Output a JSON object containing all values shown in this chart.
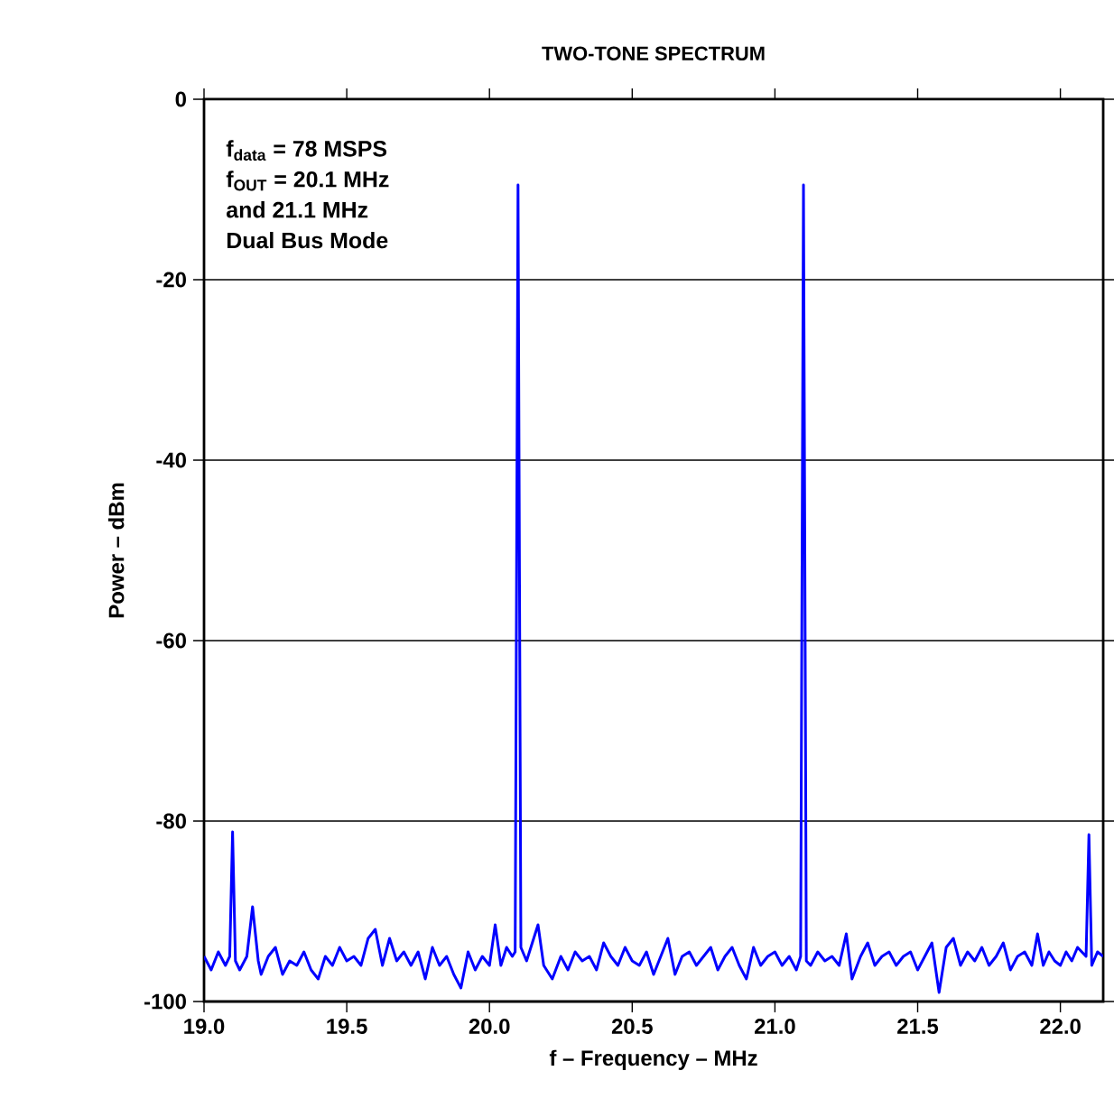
{
  "chart_data": {
    "type": "line",
    "title": "TWO-TONE SPECTRUM",
    "xlabel": "f – Frequency – MHz",
    "ylabel": "Power – dBm",
    "annotations": [
      "f$_{data}$ = 78 MSPS",
      "f$_{OUT}$ = 20.1 MHz",
      "and 21.1 MHz",
      "Dual Bus Mode"
    ],
    "xlim": [
      19.0,
      22.15
    ],
    "ylim": [
      -100,
      0
    ],
    "xticks": [
      {
        "value": 19,
        "label": "19.0"
      },
      19.5,
      {
        "value": 20,
        "label": "20.0"
      },
      20.5,
      {
        "value": 21,
        "label": "21.0"
      },
      21.5,
      {
        "value": 22,
        "label": "22.0"
      }
    ],
    "yticks": [
      -100,
      -80,
      -60,
      -40,
      -20,
      0
    ],
    "grid": "y",
    "marker": "none",
    "line_style": "solid",
    "series": [
      {
        "color": "#0000ff",
        "x": [
          19.0,
          19.025,
          19.05,
          19.075,
          19.09,
          19.1,
          19.11,
          19.125,
          19.15,
          19.17,
          19.19,
          19.2,
          19.225,
          19.25,
          19.275,
          19.3,
          19.325,
          19.35,
          19.375,
          19.4,
          19.425,
          19.45,
          19.475,
          19.5,
          19.525,
          19.55,
          19.575,
          19.6,
          19.625,
          19.65,
          19.675,
          19.7,
          19.725,
          19.75,
          19.775,
          19.8,
          19.825,
          19.85,
          19.875,
          19.9,
          19.925,
          19.95,
          19.975,
          20.0,
          20.02,
          20.04,
          20.06,
          20.08,
          20.09,
          20.1,
          20.11,
          20.13,
          20.15,
          20.17,
          20.19,
          20.22,
          20.25,
          20.275,
          20.3,
          20.325,
          20.35,
          20.375,
          20.4,
          20.425,
          20.45,
          20.475,
          20.5,
          20.525,
          20.55,
          20.575,
          20.6,
          20.625,
          20.65,
          20.675,
          20.7,
          20.725,
          20.75,
          20.775,
          20.8,
          20.825,
          20.85,
          20.875,
          20.9,
          20.925,
          20.95,
          20.975,
          21.0,
          21.025,
          21.05,
          21.075,
          21.09,
          21.1,
          21.11,
          21.125,
          21.15,
          21.175,
          21.2,
          21.225,
          21.25,
          21.27,
          21.3,
          21.325,
          21.35,
          21.375,
          21.4,
          21.425,
          21.45,
          21.475,
          21.5,
          21.525,
          21.55,
          21.575,
          21.6,
          21.625,
          21.65,
          21.675,
          21.7,
          21.725,
          21.75,
          21.775,
          21.8,
          21.825,
          21.85,
          21.875,
          21.9,
          21.92,
          21.94,
          21.96,
          21.98,
          22.0,
          22.02,
          22.04,
          22.06,
          22.09,
          22.1,
          22.11,
          22.13,
          22.15
        ],
        "values": [
          -95,
          -96.5,
          -94.5,
          -96,
          -95,
          -81.2,
          -95.5,
          -96.5,
          -95,
          -89.5,
          -95.5,
          -97,
          -95,
          -94,
          -97,
          -95.5,
          -96,
          -94.5,
          -96.5,
          -97.5,
          -95,
          -96,
          -94,
          -95.5,
          -95,
          -96,
          -93,
          -92,
          -96,
          -93,
          -95.5,
          -94.5,
          -96,
          -94.5,
          -97.5,
          -94,
          -96,
          -95,
          -97,
          -98.5,
          -94.5,
          -96.5,
          -95,
          -96,
          -91.5,
          -96,
          -94,
          -95,
          -94.5,
          -9.5,
          -94,
          -95.5,
          -93.5,
          -91.5,
          -96,
          -97.5,
          -95,
          -96.5,
          -94.5,
          -95.5,
          -95,
          -96.5,
          -93.5,
          -95,
          -96,
          -94,
          -95.5,
          -96,
          -94.5,
          -97,
          -95,
          -93,
          -97,
          -95,
          -94.5,
          -96,
          -95,
          -94,
          -96.5,
          -95,
          -94,
          -96,
          -97.5,
          -94,
          -96,
          -95,
          -94.5,
          -96,
          -95,
          -96.5,
          -95,
          -9.5,
          -95.5,
          -96,
          -94.5,
          -95.5,
          -95,
          -96,
          -92.5,
          -97.5,
          -95,
          -93.5,
          -96,
          -95,
          -94.5,
          -96,
          -95,
          -94.5,
          -96.5,
          -95,
          -93.5,
          -99,
          -94,
          -93,
          -96,
          -94.5,
          -95.5,
          -94,
          -96,
          -95,
          -93.5,
          -96.5,
          -95,
          -94.5,
          -96,
          -92.5,
          -96,
          -94.5,
          -95.5,
          -96,
          -94.5,
          -95.5,
          -94,
          -95,
          -81.5,
          -96,
          -94.5,
          -95
        ]
      }
    ]
  }
}
